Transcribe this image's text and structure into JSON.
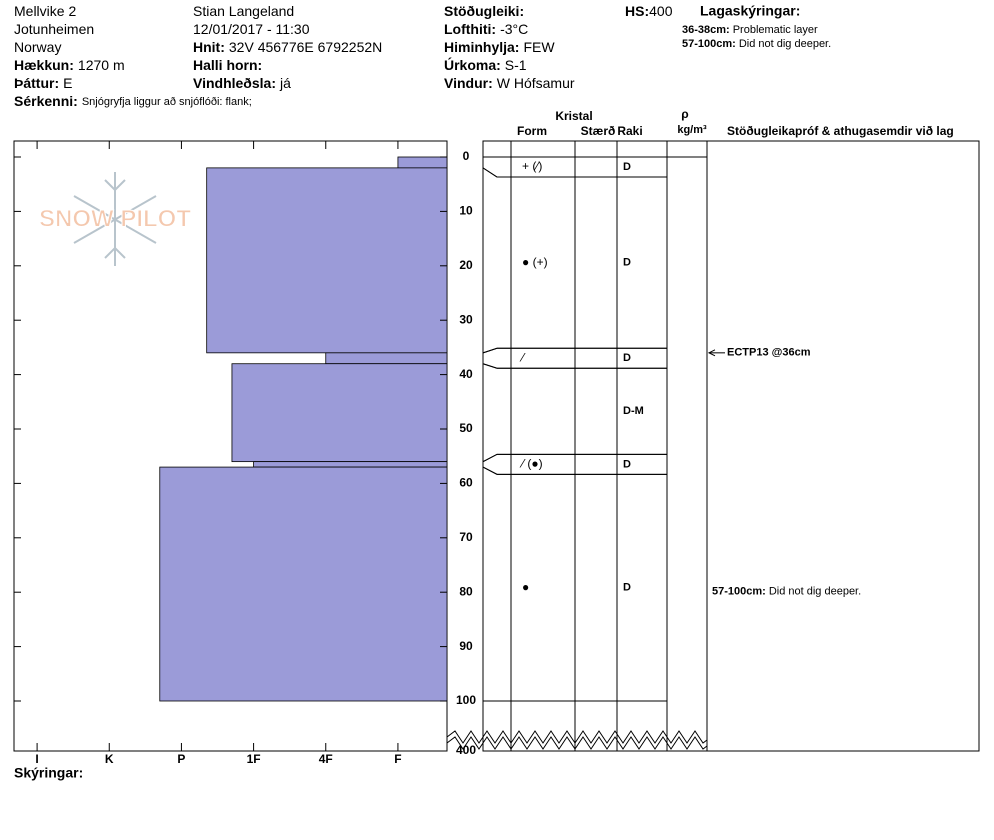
{
  "chart_data": {
    "type": "snow_profile",
    "header": {
      "columns": [
        [
          {
            "value": "Mellvike 2"
          },
          {
            "value": "Jotunheimen"
          },
          {
            "value": "Norway"
          },
          {
            "label": "Hækkun:",
            "value": "1270 m"
          },
          {
            "label": "Þáttur:",
            "value": "E"
          }
        ],
        [
          {
            "value": "Stian Langeland"
          },
          {
            "value": "12/01/2017 - 11:30"
          },
          {
            "label": "Hnit:",
            "value": "32V 456776E 6792252N"
          },
          {
            "label": "Halli horn:"
          },
          {
            "label": "Vindhleðsla:",
            "value": "já"
          }
        ],
        [
          {
            "label": "Stöðugleiki:"
          },
          {
            "label": "Lofthiti:",
            "value": "-3°C"
          },
          {
            "label": "Himinhylja:",
            "value": "FEW"
          },
          {
            "label": "Úrkoma:",
            "value": "S-1"
          },
          {
            "label": "Vindur:",
            "value": "W Hófsamur"
          }
        ]
      ],
      "features": {
        "label": "Sérkenni:",
        "value": "Snjógryfja liggur að snjóflóði: flank;"
      },
      "hs": {
        "label": "HS:",
        "value": 400
      },
      "legend_title": "Lagaskýringar:",
      "layer_notes": [
        {
          "label": "36-38cm:",
          "value": "Problematic layer"
        },
        {
          "label": "57-100cm:",
          "value": "Did not dig deeper."
        }
      ]
    },
    "logo": "SNOW PILOT",
    "columns": {
      "crystal": "Kristal",
      "form": "Form",
      "size": "Stærð",
      "moisture": "Raki",
      "density": "ρ",
      "density_unit": "kg/m³",
      "comments": "Stöðugleikapróf & athugasemdir við lag"
    },
    "depth_lim": [
      0,
      100
    ],
    "depth_ticks": [
      0,
      10,
      20,
      30,
      40,
      50,
      60,
      70,
      80,
      90,
      100,
      400
    ],
    "hardness_lim": [
      0.32,
      6.32
    ],
    "hardness_ticks": [
      {
        "value": 6,
        "label": "I"
      },
      {
        "value": 5,
        "label": "K"
      },
      {
        "value": 4,
        "label": "P"
      },
      {
        "value": 3,
        "label": "1F"
      },
      {
        "value": 2,
        "label": "4F"
      },
      {
        "value": 1,
        "label": "F"
      }
    ],
    "color": "#9b9bd8",
    "layers": [
      {
        "top": 0,
        "bottom": 2,
        "hardness": 1,
        "form": "+ (⁄)",
        "moisture": "D"
      },
      {
        "top": 2,
        "bottom": 36,
        "hardness": 3.65,
        "form": "● (+)",
        "moisture": "D"
      },
      {
        "top": 36,
        "bottom": 38,
        "hardness": 2,
        "form": "⁄",
        "moisture": "D"
      },
      {
        "top": 38,
        "bottom": 56,
        "hardness": 3.3,
        "moisture": "D-M"
      },
      {
        "top": 56,
        "bottom": 57,
        "hardness": 3,
        "form": "⁄ (●)",
        "moisture": "D"
      },
      {
        "top": 57,
        "bottom": 100,
        "hardness": 4.3,
        "form": "●",
        "moisture": "D"
      }
    ],
    "stability_tests": [
      {
        "depth": 36,
        "label": "ECTP13 @36cm"
      }
    ],
    "comments": [
      {
        "top": 57,
        "bottom": 100,
        "label": "57-100cm:",
        "value": "Did not dig deeper."
      }
    ],
    "footer": "Skýringar:"
  }
}
